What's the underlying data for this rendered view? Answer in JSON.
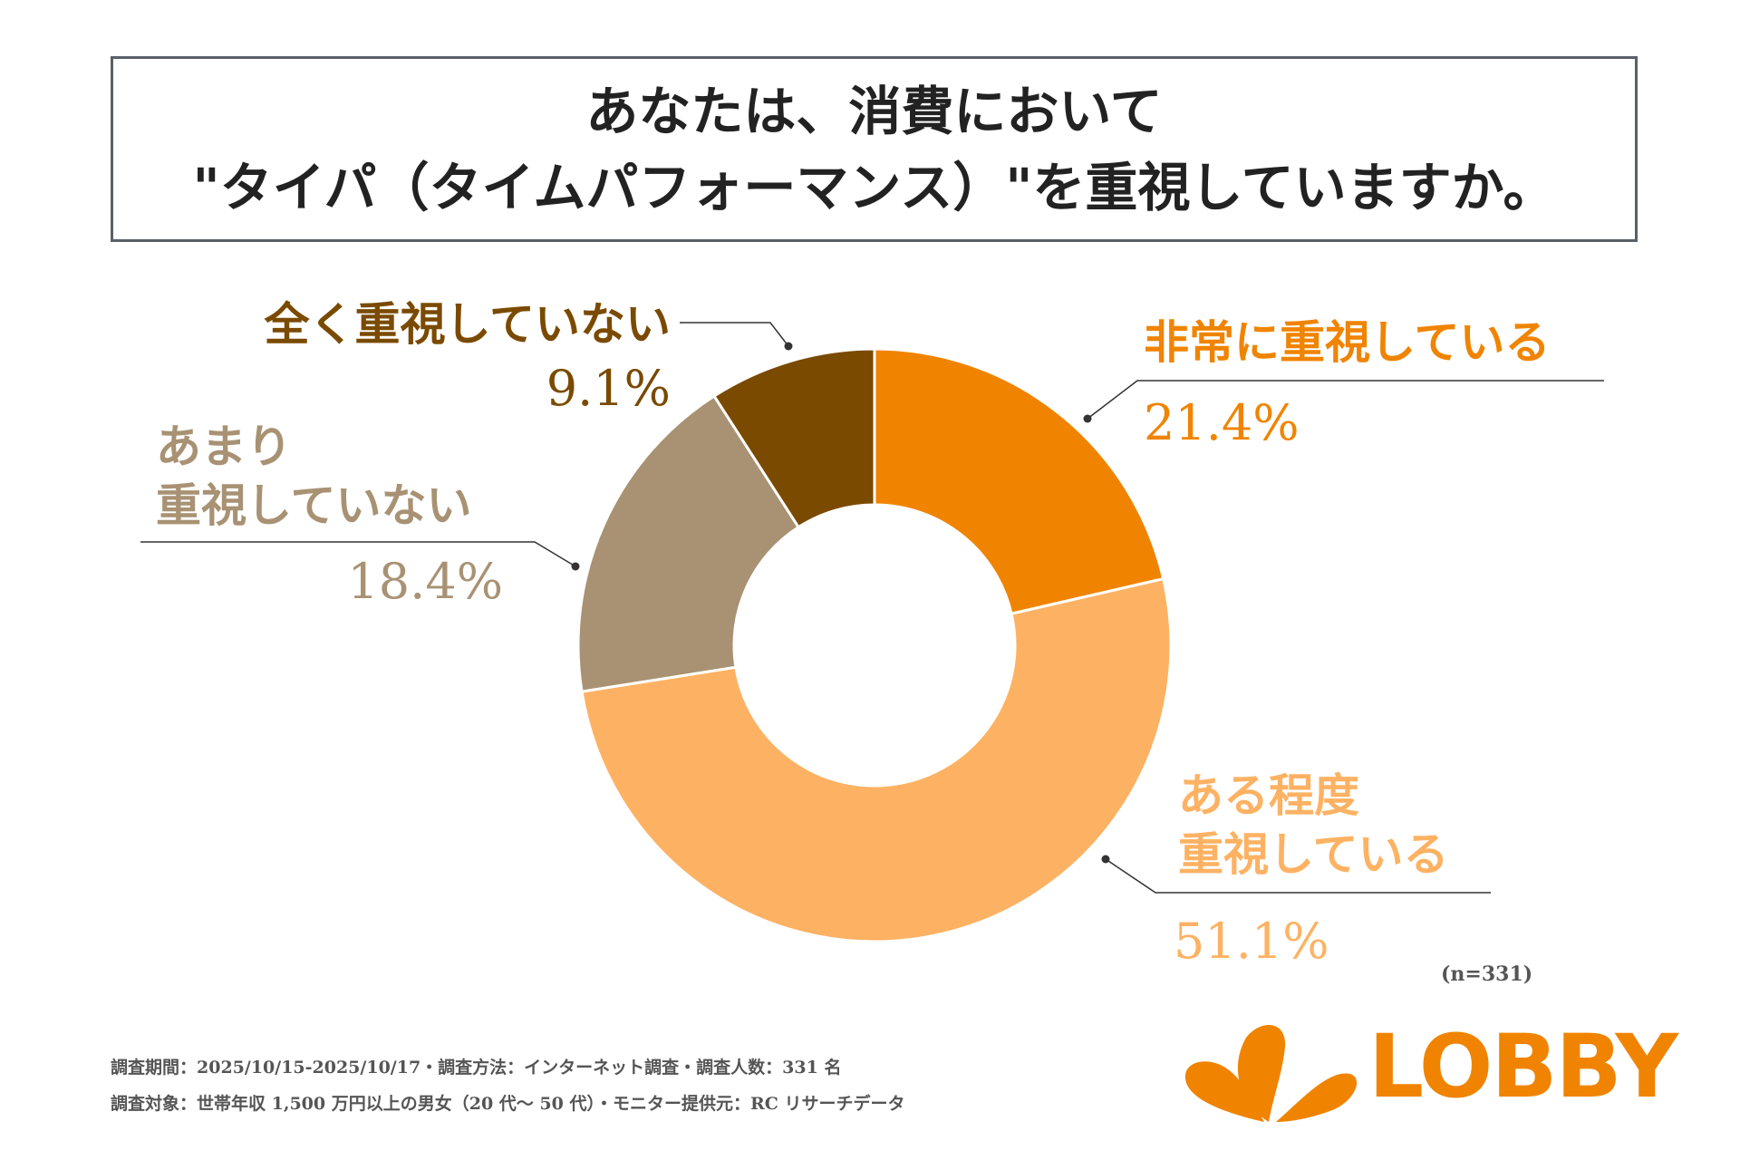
{
  "title": {
    "line1": "あなたは、消費において",
    "line2": "\"タイパ（タイムパフォーマンス）\"を重視していますか。"
  },
  "chart_data": {
    "type": "pie",
    "donut": true,
    "title": "あなたは、消費において\"タイパ（タイムパフォーマンス）\"を重視していますか。",
    "sample_size": "(n=331)",
    "slices": [
      {
        "key": "very",
        "label": [
          "非常に重視している"
        ],
        "value": 21.4,
        "value_label": "21.4%",
        "color": "#F08400"
      },
      {
        "key": "somewhat",
        "label": [
          "ある程度",
          "重視している"
        ],
        "value": 51.1,
        "value_label": "51.1%",
        "color": "#FDB263"
      },
      {
        "key": "notmuch",
        "label": [
          "あまり",
          "重視していない"
        ],
        "value": 18.4,
        "value_label": "18.4%",
        "color": "#A89273"
      },
      {
        "key": "notatall",
        "label": [
          "全く重視していない"
        ],
        "value": 9.1,
        "value_label": "9.1%",
        "color": "#7A4A00"
      }
    ]
  },
  "n_label": "(n=331)",
  "notes": {
    "line1": "調査期間：2025/10/15-2025/10/17・調査方法：インターネット調査・調査人数：331 名",
    "line2": "調査対象：世帯年収 1,500 万円以上の男女（20 代～ 50 代）・モニター提供元：RC リサーチデータ"
  },
  "logo": {
    "text": "LOBBY",
    "color": "#F08400"
  }
}
